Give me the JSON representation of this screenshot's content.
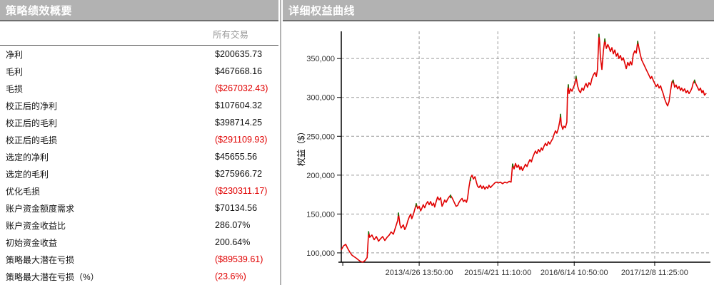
{
  "left_panel": {
    "title": "策略绩效概要",
    "column_header": "所有交易",
    "rows": [
      {
        "label": "净利",
        "value": "$200635.73",
        "negative": false
      },
      {
        "label": "毛利",
        "value": "$467668.16",
        "negative": false
      },
      {
        "label": "毛损",
        "value": "($267032.43)",
        "negative": true
      },
      {
        "label": "校正后的净利",
        "value": "$107604.32",
        "negative": false
      },
      {
        "label": "校正后的毛利",
        "value": "$398714.25",
        "negative": false
      },
      {
        "label": "校正后的毛损",
        "value": "($291109.93)",
        "negative": true
      },
      {
        "label": "选定的净利",
        "value": "$45655.56",
        "negative": false
      },
      {
        "label": "选定的毛利",
        "value": "$275966.72",
        "negative": false
      },
      {
        "label": "优化毛损",
        "value": "($230311.17)",
        "negative": true
      },
      {
        "label": "账户资金额度需求",
        "value": "$70134.56",
        "negative": false
      },
      {
        "label": "账户资金收益比",
        "value": "286.07%",
        "negative": false
      },
      {
        "label": "初始资金收益",
        "value": "200.64%",
        "negative": false
      },
      {
        "label": "策略最大潜在亏损",
        "value": "($89539.61)",
        "negative": true
      },
      {
        "label": "策略最大潜在亏损（%）",
        "value": "(23.6%)",
        "negative": true
      }
    ]
  },
  "right_panel": {
    "title": "详细权益曲线"
  },
  "colors": {
    "header_bg": "#b2b2b2",
    "header_border": "#6f6f6f",
    "header_text": "#ffffff",
    "negative": "#e00000",
    "muted_text": "#999999",
    "grid": "#9a9a9a",
    "axis": "#000000",
    "tick_label": "#333333",
    "line": "#e00000",
    "marker": "#0a7a0a"
  },
  "chart_data": {
    "type": "line",
    "title": "详细权益曲线",
    "xlabel": "",
    "ylabel": "权益（$）",
    "grid": "dashed",
    "legend": "none",
    "ylim": [
      88000,
      385000
    ],
    "y_ticks": [
      100000,
      150000,
      200000,
      250000,
      300000,
      350000
    ],
    "y_tick_labels": [
      "100,000",
      "150,000",
      "200,000",
      "250,000",
      "300,000",
      "350,000"
    ],
    "x_ticks": [
      {
        "t": 0.004,
        "label": ""
      },
      {
        "t": 0.211,
        "label": "2013/4/26 13:50:00"
      },
      {
        "t": 0.424,
        "label": "2015/4/21 11:10:00"
      },
      {
        "t": 0.631,
        "label": "2016/6/14 10:50:00"
      },
      {
        "t": 0.849,
        "label": "2017/12/8 11:25:00"
      }
    ],
    "line_color": "#e00000",
    "marker_color": "#0a7a0a",
    "series": [
      {
        "name": "权益",
        "points": [
          [
            0.0,
            104000
          ],
          [
            0.006,
            109000
          ],
          [
            0.012,
            111000
          ],
          [
            0.017,
            106000
          ],
          [
            0.023,
            101000
          ],
          [
            0.029,
            97000
          ],
          [
            0.035,
            95000
          ],
          [
            0.041,
            93000
          ],
          [
            0.046,
            91000
          ],
          [
            0.052,
            89000
          ],
          [
            0.058,
            88000
          ],
          [
            0.064,
            90000
          ],
          [
            0.07,
            94000
          ],
          [
            0.074,
            127000
          ],
          [
            0.077,
            120000
          ],
          [
            0.083,
            123000
          ],
          [
            0.089,
            117000
          ],
          [
            0.095,
            121000
          ],
          [
            0.101,
            115000
          ],
          [
            0.106,
            118000
          ],
          [
            0.112,
            121000
          ],
          [
            0.118,
            116000
          ],
          [
            0.124,
            120000
          ],
          [
            0.13,
            123000
          ],
          [
            0.135,
            127000
          ],
          [
            0.141,
            124000
          ],
          [
            0.147,
            133000
          ],
          [
            0.153,
            142000
          ],
          [
            0.155,
            151000
          ],
          [
            0.159,
            136000
          ],
          [
            0.162,
            132000
          ],
          [
            0.168,
            136000
          ],
          [
            0.172,
            130000
          ],
          [
            0.176,
            134000
          ],
          [
            0.18,
            141000
          ],
          [
            0.184,
            146000
          ],
          [
            0.188,
            150000
          ],
          [
            0.191,
            144000
          ],
          [
            0.195,
            149000
          ],
          [
            0.199,
            156000
          ],
          [
            0.203,
            163000
          ],
          [
            0.207,
            157000
          ],
          [
            0.211,
            160000
          ],
          [
            0.215,
            154000
          ],
          [
            0.219,
            158000
          ],
          [
            0.222,
            162000
          ],
          [
            0.226,
            158000
          ],
          [
            0.23,
            163000
          ],
          [
            0.234,
            166000
          ],
          [
            0.238,
            162000
          ],
          [
            0.242,
            166000
          ],
          [
            0.246,
            161000
          ],
          [
            0.25,
            164000
          ],
          [
            0.253,
            159000
          ],
          [
            0.257,
            166000
          ],
          [
            0.261,
            172000
          ],
          [
            0.265,
            168000
          ],
          [
            0.269,
            171000
          ],
          [
            0.273,
            160000
          ],
          [
            0.277,
            164000
          ],
          [
            0.28,
            168000
          ],
          [
            0.284,
            165000
          ],
          [
            0.288,
            169000
          ],
          [
            0.292,
            172000
          ],
          [
            0.296,
            174000
          ],
          [
            0.3,
            171000
          ],
          [
            0.304,
            167000
          ],
          [
            0.308,
            163000
          ],
          [
            0.311,
            160000
          ],
          [
            0.315,
            161000
          ],
          [
            0.319,
            165000
          ],
          [
            0.323,
            168000
          ],
          [
            0.327,
            170000
          ],
          [
            0.331,
            166000
          ],
          [
            0.335,
            168000
          ],
          [
            0.339,
            165000
          ],
          [
            0.342,
            170000
          ],
          [
            0.346,
            185000
          ],
          [
            0.35,
            196000
          ],
          [
            0.354,
            200000
          ],
          [
            0.358,
            195000
          ],
          [
            0.362,
            198000
          ],
          [
            0.366,
            191000
          ],
          [
            0.369,
            186000
          ],
          [
            0.373,
            184000
          ],
          [
            0.377,
            187000
          ],
          [
            0.381,
            183000
          ],
          [
            0.385,
            186000
          ],
          [
            0.389,
            182000
          ],
          [
            0.393,
            185000
          ],
          [
            0.397,
            183000
          ],
          [
            0.4,
            187000
          ],
          [
            0.404,
            184000
          ],
          [
            0.408,
            186000
          ],
          [
            0.412,
            188000
          ],
          [
            0.416,
            190000
          ],
          [
            0.42,
            191000
          ],
          [
            0.426,
            190000
          ],
          [
            0.431,
            191000
          ],
          [
            0.437,
            189000
          ],
          [
            0.443,
            191000
          ],
          [
            0.449,
            190000
          ],
          [
            0.455,
            192000
          ],
          [
            0.46,
            191000
          ],
          [
            0.464,
            214000
          ],
          [
            0.468,
            208000
          ],
          [
            0.472,
            215000
          ],
          [
            0.476,
            210000
          ],
          [
            0.48,
            213000
          ],
          [
            0.484,
            207000
          ],
          [
            0.487,
            211000
          ],
          [
            0.491,
            206000
          ],
          [
            0.495,
            210000
          ],
          [
            0.499,
            214000
          ],
          [
            0.503,
            211000
          ],
          [
            0.507,
            216000
          ],
          [
            0.511,
            220000
          ],
          [
            0.515,
            217000
          ],
          [
            0.518,
            222000
          ],
          [
            0.522,
            227000
          ],
          [
            0.526,
            231000
          ],
          [
            0.53,
            228000
          ],
          [
            0.534,
            233000
          ],
          [
            0.538,
            230000
          ],
          [
            0.542,
            235000
          ],
          [
            0.545,
            232000
          ],
          [
            0.549,
            237000
          ],
          [
            0.553,
            241000
          ],
          [
            0.557,
            238000
          ],
          [
            0.561,
            243000
          ],
          [
            0.565,
            240000
          ],
          [
            0.569,
            244000
          ],
          [
            0.573,
            247000
          ],
          [
            0.576,
            252000
          ],
          [
            0.58,
            257000
          ],
          [
            0.584,
            254000
          ],
          [
            0.588,
            260000
          ],
          [
            0.592,
            270000
          ],
          [
            0.594,
            278000
          ],
          [
            0.596,
            265000
          ],
          [
            0.6,
            259000
          ],
          [
            0.603,
            263000
          ],
          [
            0.607,
            261000
          ],
          [
            0.611,
            268000
          ],
          [
            0.613,
            308000
          ],
          [
            0.615,
            316000
          ],
          [
            0.617,
            305000
          ],
          [
            0.621,
            311000
          ],
          [
            0.625,
            308000
          ],
          [
            0.629,
            313000
          ],
          [
            0.633,
            318000
          ],
          [
            0.636,
            327000
          ],
          [
            0.64,
            315000
          ],
          [
            0.644,
            309000
          ],
          [
            0.648,
            306000
          ],
          [
            0.652,
            312000
          ],
          [
            0.656,
            309000
          ],
          [
            0.66,
            315000
          ],
          [
            0.663,
            318000
          ],
          [
            0.667,
            313000
          ],
          [
            0.671,
            319000
          ],
          [
            0.675,
            316000
          ],
          [
            0.679,
            324000
          ],
          [
            0.683,
            329000
          ],
          [
            0.687,
            332000
          ],
          [
            0.691,
            327000
          ],
          [
            0.694,
            336000
          ],
          [
            0.698,
            381000
          ],
          [
            0.7,
            371000
          ],
          [
            0.702,
            352000
          ],
          [
            0.706,
            336000
          ],
          [
            0.71,
            360000
          ],
          [
            0.714,
            375000
          ],
          [
            0.718,
            363000
          ],
          [
            0.722,
            368000
          ],
          [
            0.725,
            365000
          ],
          [
            0.729,
            359000
          ],
          [
            0.733,
            364000
          ],
          [
            0.737,
            356000
          ],
          [
            0.741,
            361000
          ],
          [
            0.745,
            353000
          ],
          [
            0.749,
            357000
          ],
          [
            0.752,
            350000
          ],
          [
            0.756,
            354000
          ],
          [
            0.76,
            348000
          ],
          [
            0.764,
            351000
          ],
          [
            0.768,
            344000
          ],
          [
            0.772,
            337000
          ],
          [
            0.776,
            345000
          ],
          [
            0.78,
            341000
          ],
          [
            0.783,
            346000
          ],
          [
            0.787,
            342000
          ],
          [
            0.791,
            355000
          ],
          [
            0.795,
            360000
          ],
          [
            0.799,
            357000
          ],
          [
            0.803,
            372000
          ],
          [
            0.807,
            362000
          ],
          [
            0.81,
            355000
          ],
          [
            0.814,
            348000
          ],
          [
            0.818,
            344000
          ],
          [
            0.822,
            340000
          ],
          [
            0.826,
            336000
          ],
          [
            0.83,
            332000
          ],
          [
            0.834,
            328000
          ],
          [
            0.838,
            324000
          ],
          [
            0.841,
            327000
          ],
          [
            0.845,
            322000
          ],
          [
            0.849,
            318000
          ],
          [
            0.853,
            314000
          ],
          [
            0.857,
            317000
          ],
          [
            0.861,
            312000
          ],
          [
            0.865,
            315000
          ],
          [
            0.868,
            310000
          ],
          [
            0.872,
            305000
          ],
          [
            0.876,
            298000
          ],
          [
            0.88,
            293000
          ],
          [
            0.884,
            289000
          ],
          [
            0.888,
            295000
          ],
          [
            0.892,
            309000
          ],
          [
            0.896,
            320000
          ],
          [
            0.899,
            322000
          ],
          [
            0.903,
            313000
          ],
          [
            0.907,
            316000
          ],
          [
            0.911,
            311000
          ],
          [
            0.915,
            314000
          ],
          [
            0.919,
            309000
          ],
          [
            0.922,
            312000
          ],
          [
            0.926,
            308000
          ],
          [
            0.93,
            311000
          ],
          [
            0.934,
            306000
          ],
          [
            0.938,
            309000
          ],
          [
            0.942,
            305000
          ],
          [
            0.946,
            308000
          ],
          [
            0.95,
            312000
          ],
          [
            0.953,
            318000
          ],
          [
            0.957,
            322000
          ],
          [
            0.961,
            317000
          ],
          [
            0.965,
            313000
          ],
          [
            0.969,
            309000
          ],
          [
            0.973,
            312000
          ],
          [
            0.977,
            306000
          ],
          [
            0.98,
            309000
          ],
          [
            0.984,
            303000
          ],
          [
            0.988,
            305000
          ]
        ]
      }
    ],
    "markers": [
      [
        0.074,
        127000
      ],
      [
        0.155,
        151000
      ],
      [
        0.203,
        163000
      ],
      [
        0.296,
        174000
      ],
      [
        0.35,
        196000
      ],
      [
        0.464,
        214000
      ],
      [
        0.594,
        278000
      ],
      [
        0.615,
        316000
      ],
      [
        0.636,
        327000
      ],
      [
        0.698,
        381000
      ],
      [
        0.714,
        375000
      ],
      [
        0.803,
        372000
      ],
      [
        0.899,
        322000
      ],
      [
        0.957,
        322000
      ]
    ]
  }
}
